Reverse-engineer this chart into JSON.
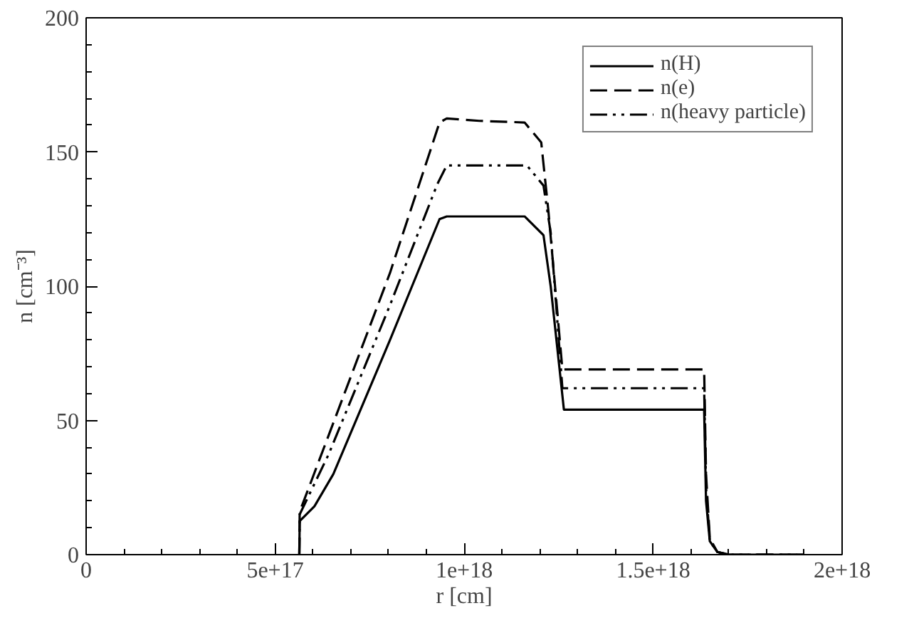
{
  "chart_data": {
    "type": "line",
    "xlabel": "r [cm]",
    "ylabel": "n [cm⁻³]",
    "xlim": [
      0,
      2e+18
    ],
    "ylim": [
      0,
      200
    ],
    "xticks": [
      {
        "value": 0,
        "label": "0"
      },
      {
        "value": 5e+17,
        "label": "5e+17"
      },
      {
        "value": 1e+18,
        "label": "1e+18"
      },
      {
        "value": 1.5e+18,
        "label": "1.5e+18"
      },
      {
        "value": 2e+18,
        "label": "2e+18"
      }
    ],
    "yticks": [
      0,
      50,
      100,
      150,
      200
    ],
    "legend": "top right",
    "grid": false,
    "marker": "none",
    "series": [
      {
        "name": "n(H)",
        "color": "#000000",
        "line_style": "solid",
        "x": [
          5.64e+17,
          5.65e+17,
          6.04e+17,
          6.54e+17,
          8.04e+17,
          9.35e+17,
          9.54e+17,
          1.16e+18,
          1.21e+18,
          1.229e+18,
          1.264e+18,
          1.635e+18,
          1.64e+18,
          1.65e+18,
          1.67e+18,
          1.7e+18,
          1.9e+18
        ],
        "values": [
          0,
          12.5,
          18,
          30,
          80,
          125,
          126,
          126,
          119,
          100,
          54,
          54,
          20,
          5,
          1,
          0,
          0
        ]
      },
      {
        "name": "n(e)",
        "color": "#000000",
        "line_style": "dashed",
        "x": [
          5.64e+17,
          5.65e+17,
          6.42e+17,
          8.04e+17,
          9.35e+17,
          9.54e+17,
          1.04e+18,
          1.16e+18,
          1.204e+18,
          1.223e+18,
          1.26e+18,
          1.635e+18,
          1.64e+18,
          1.65e+18,
          1.67e+18,
          1.7e+18,
          1.9e+18
        ],
        "values": [
          0,
          16,
          44.6,
          105,
          161,
          162.5,
          161.6,
          161,
          153.6,
          128,
          69,
          69,
          30,
          6,
          1,
          0,
          0
        ]
      },
      {
        "name": "n(heavy particle)",
        "color": "#000000",
        "line_style": "dotdash",
        "x": [
          5.64e+17,
          5.65e+17,
          6.42e+17,
          8.04e+17,
          9.29e+17,
          9.54e+17,
          1.166e+18,
          1.21e+18,
          1.229e+18,
          1.26e+18,
          1.635e+18,
          1.64e+18,
          1.65e+18,
          1.67e+18,
          1.7e+18,
          1.9e+18
        ],
        "values": [
          0,
          15,
          37.5,
          93,
          138,
          145,
          145,
          137.5,
          120,
          62,
          62,
          25,
          5,
          1,
          0,
          0
        ]
      }
    ]
  }
}
